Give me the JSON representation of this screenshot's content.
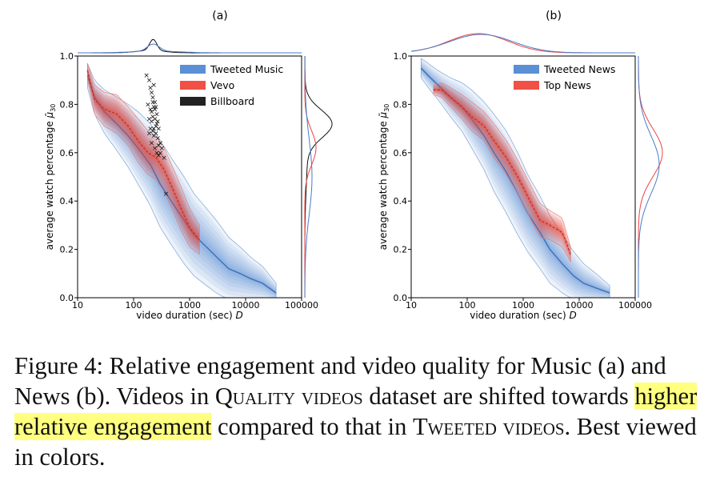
{
  "chart_data": [
    {
      "panel_label": "(a)",
      "type": "area",
      "xlabel": "video duration (sec) ",
      "xlabel_var": "D",
      "ylabel": "average watch percentage ",
      "ylabel_sym": "μ̄",
      "ylabel_sub": "30",
      "x_scale": "log",
      "xlim": [
        10,
        100000
      ],
      "ylim": [
        0,
        1.0
      ],
      "xticks": [
        "10",
        "100",
        "1000",
        "10000",
        "100000"
      ],
      "yticks": [
        "0.0",
        "0.2",
        "0.4",
        "0.6",
        "0.8",
        "1.0"
      ],
      "legend_position": "top-right",
      "legend": [
        {
          "label": "Tweeted Music",
          "color": "#5b8fd6"
        },
        {
          "label": "Vevo",
          "color": "#f05046"
        },
        {
          "label": "Billboard",
          "color": "#222222"
        }
      ],
      "series": [
        {
          "name": "Tweeted Music",
          "color": "#3a6fb8",
          "x": [
            15,
            20,
            30,
            50,
            80,
            120,
            200,
            300,
            500,
            800,
            1200,
            2000,
            3000,
            5000,
            8000,
            12000,
            20000,
            35000
          ],
          "y": [
            0.92,
            0.83,
            0.77,
            0.72,
            0.67,
            0.62,
            0.55,
            0.47,
            0.39,
            0.32,
            0.26,
            0.21,
            0.17,
            0.12,
            0.1,
            0.08,
            0.06,
            0.02
          ],
          "spread": [
            0.05,
            0.07,
            0.09,
            0.11,
            0.13,
            0.15,
            0.17,
            0.18,
            0.18,
            0.18,
            0.17,
            0.16,
            0.15,
            0.13,
            0.11,
            0.09,
            0.07,
            0.04
          ]
        },
        {
          "name": "Vevo",
          "color": "#c83226",
          "x": [
            15,
            20,
            30,
            50,
            80,
            120,
            180,
            250,
            350,
            500,
            700,
            1000,
            1500
          ],
          "y": [
            0.94,
            0.82,
            0.78,
            0.76,
            0.71,
            0.65,
            0.6,
            0.58,
            0.53,
            0.45,
            0.37,
            0.29,
            0.24
          ],
          "spread": [
            0.03,
            0.06,
            0.07,
            0.08,
            0.08,
            0.09,
            0.09,
            0.09,
            0.09,
            0.09,
            0.09,
            0.08,
            0.06
          ]
        }
      ],
      "billboard_points": [
        [
          170,
          0.92
        ],
        [
          190,
          0.9
        ],
        [
          200,
          0.87
        ],
        [
          210,
          0.85
        ],
        [
          220,
          0.83
        ],
        [
          230,
          0.88
        ],
        [
          240,
          0.81
        ],
        [
          250,
          0.79
        ],
        [
          200,
          0.78
        ],
        [
          180,
          0.8
        ],
        [
          220,
          0.75
        ],
        [
          240,
          0.74
        ],
        [
          260,
          0.72
        ],
        [
          280,
          0.7
        ],
        [
          210,
          0.73
        ],
        [
          230,
          0.7
        ],
        [
          250,
          0.68
        ],
        [
          270,
          0.66
        ],
        [
          190,
          0.68
        ],
        [
          300,
          0.64
        ],
        [
          320,
          0.62
        ],
        [
          210,
          0.64
        ],
        [
          240,
          0.62
        ],
        [
          260,
          0.6
        ],
        [
          280,
          0.59
        ],
        [
          230,
          0.67
        ],
        [
          250,
          0.71
        ],
        [
          270,
          0.73
        ],
        [
          200,
          0.7
        ],
        [
          220,
          0.69
        ],
        [
          300,
          0.6
        ],
        [
          280,
          0.63
        ],
        [
          350,
          0.58
        ],
        [
          380,
          0.43
        ],
        [
          190,
          0.74
        ],
        [
          210,
          0.77
        ],
        [
          240,
          0.78
        ],
        [
          260,
          0.76
        ],
        [
          230,
          0.79
        ],
        [
          220,
          0.81
        ]
      ],
      "marginal_x": "Top: density of video durations (Billboard sharply peaked near 200 s).",
      "marginal_y": "Right: density of watch percentage (Billboard peaked near 0.72)."
    },
    {
      "panel_label": "(b)",
      "type": "area",
      "xlabel": "video duration (sec) ",
      "xlabel_var": "D",
      "ylabel": "average watch percentage ",
      "ylabel_sym": "μ̄",
      "ylabel_sub": "30",
      "x_scale": "log",
      "xlim": [
        10,
        100000
      ],
      "ylim": [
        0,
        1.0
      ],
      "xticks": [
        "10",
        "100",
        "1000",
        "10000",
        "100000"
      ],
      "yticks": [
        "0.0",
        "0.2",
        "0.4",
        "0.6",
        "0.8",
        "1.0"
      ],
      "legend_position": "top-right",
      "legend": [
        {
          "label": "Tweeted News",
          "color": "#5b8fd6"
        },
        {
          "label": "Top News",
          "color": "#f05046"
        }
      ],
      "series": [
        {
          "name": "Tweeted News",
          "color": "#3a6fb8",
          "x": [
            15,
            20,
            30,
            50,
            80,
            120,
            200,
            300,
            500,
            800,
            1200,
            2000,
            3000,
            5000,
            8000,
            12000,
            20000,
            35000
          ],
          "y": [
            0.95,
            0.92,
            0.88,
            0.83,
            0.79,
            0.74,
            0.67,
            0.6,
            0.52,
            0.43,
            0.35,
            0.27,
            0.2,
            0.14,
            0.09,
            0.06,
            0.04,
            0.02
          ],
          "spread": [
            0.04,
            0.05,
            0.06,
            0.08,
            0.1,
            0.12,
            0.14,
            0.16,
            0.17,
            0.17,
            0.16,
            0.15,
            0.14,
            0.12,
            0.1,
            0.08,
            0.06,
            0.03
          ]
        },
        {
          "name": "Top News",
          "color": "#c83226",
          "x": [
            25,
            35,
            50,
            80,
            120,
            200,
            300,
            500,
            800,
            1200,
            2000,
            3000,
            5000,
            7000
          ],
          "y": [
            0.86,
            0.86,
            0.83,
            0.79,
            0.75,
            0.71,
            0.65,
            0.58,
            0.5,
            0.42,
            0.32,
            0.3,
            0.27,
            0.18
          ],
          "spread": [
            0.02,
            0.03,
            0.04,
            0.05,
            0.06,
            0.06,
            0.07,
            0.07,
            0.07,
            0.07,
            0.07,
            0.06,
            0.06,
            0.03
          ]
        }
      ],
      "marginal_x": "Top: density of video durations for both datasets, broad peak near 100 s.",
      "marginal_y": "Right: density of watch percentage; Top News peaked higher (~0.6) than Tweeted News."
    }
  ],
  "caption": {
    "p1": "Figure 4: Relative engagement and video quality for Music (a) and News (b). Videos in ",
    "sc1": "Quality videos",
    "p2": " dataset are shifted towards ",
    "highlight": "higher relative engagement",
    "p3": " compared to that in ",
    "sc2": "Tweeted videos",
    "p4": ". Best viewed in colors."
  }
}
